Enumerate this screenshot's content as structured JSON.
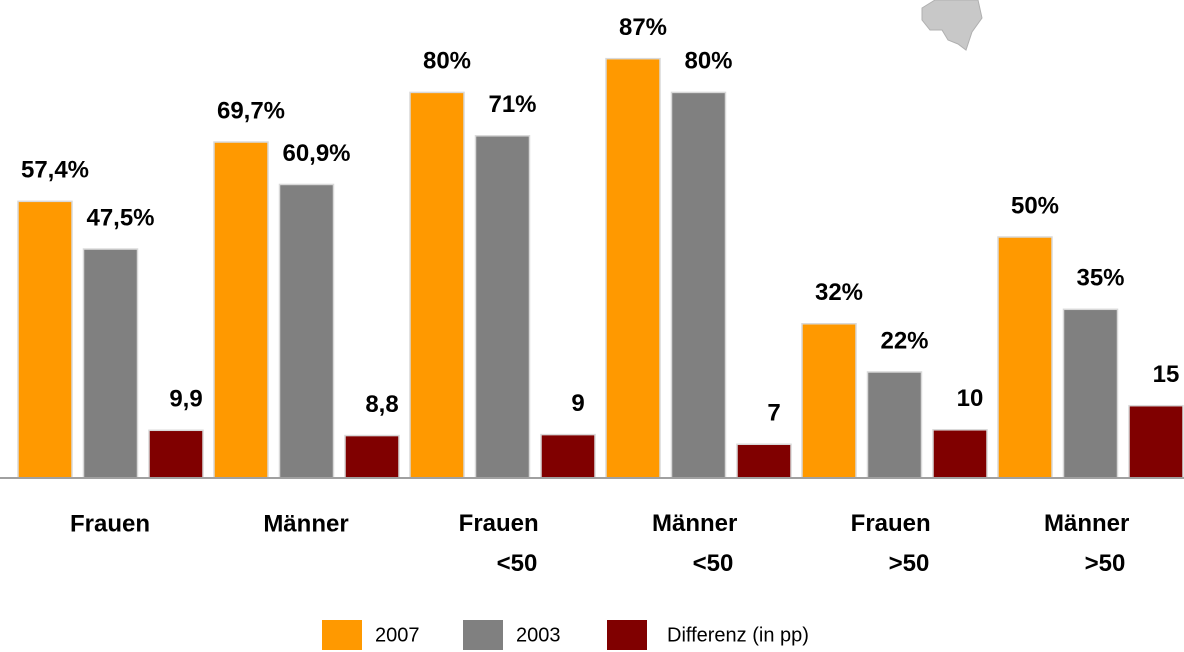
{
  "chart_data": {
    "type": "bar",
    "categories": [
      "Frauen",
      "Männer",
      "Frauen <50",
      "Männer <50",
      "Frauen >50",
      "Männer >50"
    ],
    "series": [
      {
        "name": "2007",
        "color": "#ff9900",
        "values": [
          57.4,
          69.7,
          80,
          87,
          32,
          50
        ],
        "value_labels": [
          "57,4%",
          "69,7%",
          "80%",
          "87%",
          "32%",
          "50%"
        ]
      },
      {
        "name": "2003",
        "color": "#808080",
        "values": [
          47.5,
          60.9,
          71,
          80,
          22,
          35
        ],
        "value_labels": [
          "47,5%",
          "60,9%",
          "71%",
          "80%",
          "22%",
          "35%"
        ]
      },
      {
        "name": "Differenz (in pp)",
        "color": "#800000",
        "values": [
          9.9,
          8.8,
          9,
          7,
          10,
          15
        ],
        "value_labels": [
          "9,9",
          "8,8",
          "9",
          "7",
          "10",
          "15"
        ]
      }
    ],
    "ylim": [
      0,
      100
    ]
  }
}
